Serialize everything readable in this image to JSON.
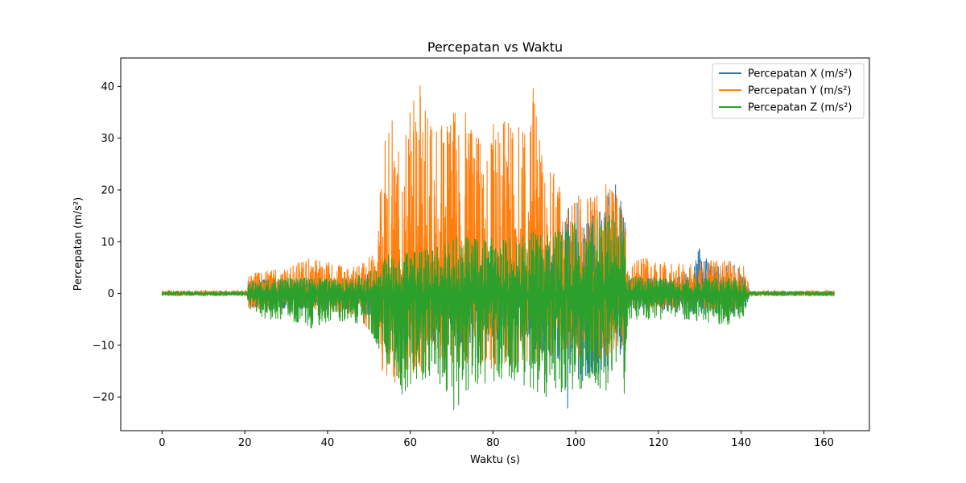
{
  "chart_data": {
    "type": "line",
    "title": "Percepatan vs Waktu",
    "xlabel": "Waktu (s)",
    "ylabel": "Percepatan (m/s²)",
    "xlim": [
      -10,
      171
    ],
    "ylim": [
      -26.5,
      45.5
    ],
    "xticks": [
      0,
      20,
      40,
      60,
      80,
      100,
      120,
      140,
      160
    ],
    "yticks": [
      -20,
      -10,
      0,
      10,
      20,
      30,
      40
    ],
    "grid": false,
    "legend_position": "top-right",
    "x_range": [
      0,
      162.5
    ],
    "series": [
      {
        "name": "Percepatan X (m/s²)",
        "color": "#1f77b4",
        "envelope": {
          "t": [
            0,
            20.5,
            21,
            30,
            40,
            48,
            52,
            60,
            70,
            80,
            90,
            96,
            98,
            100,
            104,
            108,
            110,
            112,
            112.5,
            120,
            128,
            130,
            132,
            140,
            141,
            142,
            162.5
          ],
          "max": [
            0.3,
            0.3,
            2.5,
            3,
            3,
            3,
            5,
            7,
            7,
            7,
            9,
            10,
            17,
            18,
            17,
            20,
            21.8,
            14,
            3,
            3,
            4,
            9.4,
            6,
            5.5,
            4,
            0.4,
            0.4
          ],
          "min": [
            -0.3,
            -0.3,
            -2.5,
            -3,
            -3,
            -3,
            -6,
            -9,
            -10,
            -10,
            -11,
            -13,
            -22.5,
            -18,
            -16,
            -15,
            -14,
            -12,
            -3,
            -3,
            -4,
            -4,
            -4,
            -4,
            -3,
            -0.4,
            -0.4
          ]
        }
      },
      {
        "name": "Percepatan Y (m/s²)",
        "color": "#ff7f0e",
        "envelope": {
          "t": [
            0,
            20.5,
            21,
            30,
            36,
            45,
            52,
            53,
            56,
            59,
            62,
            65,
            68,
            72,
            76,
            80,
            84,
            86,
            89,
            90,
            92,
            95,
            98,
            100,
            104,
            108,
            110,
            112,
            112.5,
            116,
            120,
            128,
            135,
            140,
            141,
            142,
            162.5
          ],
          "max": [
            0.6,
            0.6,
            4,
            5,
            7,
            5,
            8,
            31,
            35,
            34,
            41.6,
            32,
            34,
            39,
            31,
            33,
            35,
            32,
            35,
            42.2,
            25,
            23,
            17,
            19,
            19,
            22,
            20,
            14,
            6,
            7,
            6,
            6,
            7,
            6,
            5,
            0.6,
            0.6
          ],
          "min": [
            -0.5,
            -0.5,
            -3,
            -3,
            -3,
            -4,
            -8,
            -15,
            -17.5,
            -15,
            -16,
            -15,
            -13,
            -14,
            -13,
            -15,
            -14,
            -14,
            -13,
            -14,
            -13,
            -12,
            -11,
            -12,
            -14,
            -12,
            -11,
            -10,
            -3,
            -3,
            -3,
            -3,
            -3,
            -4,
            -2,
            -0.5,
            -0.5
          ]
        }
      },
      {
        "name": "Percepatan Z (m/s²)",
        "color": "#2ca02c",
        "envelope": {
          "t": [
            0,
            20.5,
            21,
            25,
            30,
            37,
            45,
            50,
            52,
            55,
            58,
            62,
            65,
            71,
            75,
            80,
            84,
            86,
            90,
            95,
            98,
            100,
            104,
            108,
            110,
            112,
            112.5,
            118,
            125,
            135,
            140,
            141,
            142,
            162.5
          ],
          "max": [
            0.4,
            0.4,
            2,
            2.5,
            3,
            3,
            3,
            4,
            6,
            8,
            8,
            8,
            9,
            11,
            11,
            11,
            11,
            11,
            12,
            12,
            13,
            14,
            14,
            16,
            17,
            11,
            3.5,
            3,
            3,
            3,
            3,
            2.5,
            0.4,
            0.4
          ],
          "min": [
            -0.4,
            -0.4,
            -3,
            -5,
            -5,
            -7,
            -5,
            -7,
            -10,
            -15,
            -19.5,
            -17,
            -16,
            -23.5,
            -18,
            -17,
            -16,
            -18,
            -20,
            -21,
            -19,
            -19,
            -17,
            -21.5,
            -17,
            -20.6,
            -5,
            -5,
            -5,
            -6,
            -6,
            -3,
            -0.4,
            -0.4
          ]
        }
      }
    ]
  }
}
